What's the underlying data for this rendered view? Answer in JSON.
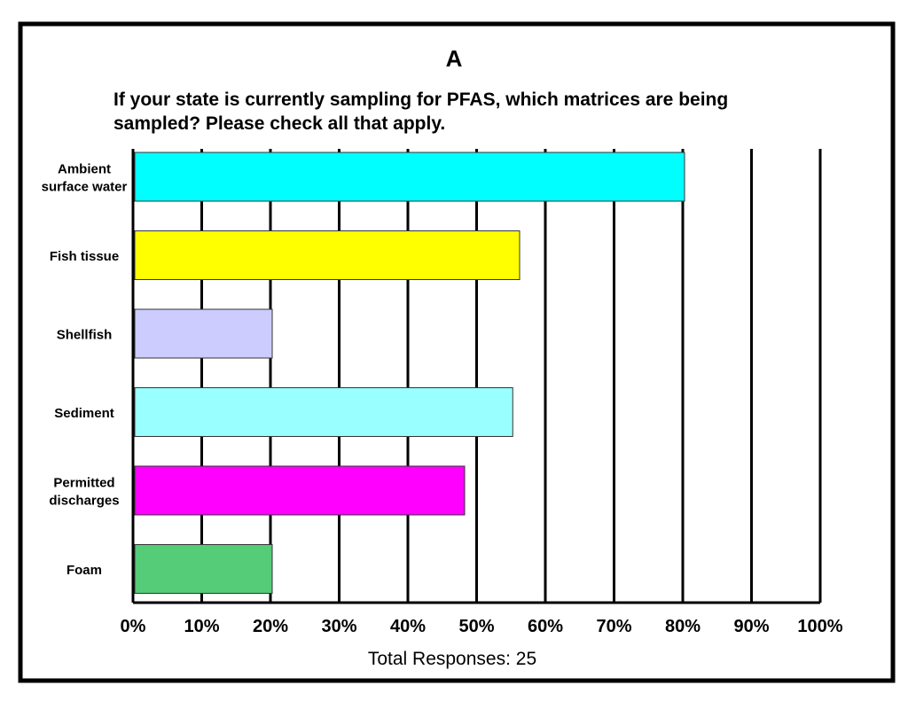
{
  "chart_data": {
    "type": "bar",
    "orientation": "horizontal",
    "panel_label": "A",
    "title_lines": [
      "If your state is currently sampling for PFAS, which matrices are being",
      "sampled?  Please check all that apply."
    ],
    "categories": [
      [
        "Ambient",
        "surface water"
      ],
      [
        "Fish tissue"
      ],
      [
        "Shellfish"
      ],
      [
        "Sediment"
      ],
      [
        "Permitted",
        "discharges"
      ],
      [
        "Foam"
      ]
    ],
    "values": [
      80,
      56,
      20,
      55,
      48,
      20
    ],
    "bar_colors": [
      "#00ffff",
      "#ffff00",
      "#ccccff",
      "#99ffff",
      "#ff00ff",
      "#55cc77"
    ],
    "xlim": [
      0,
      100
    ],
    "x_ticks": [
      "0%",
      "10%",
      "20%",
      "30%",
      "40%",
      "50%",
      "60%",
      "70%",
      "80%",
      "90%",
      "100%"
    ],
    "grid": true,
    "footer": "Total Responses:  25"
  }
}
